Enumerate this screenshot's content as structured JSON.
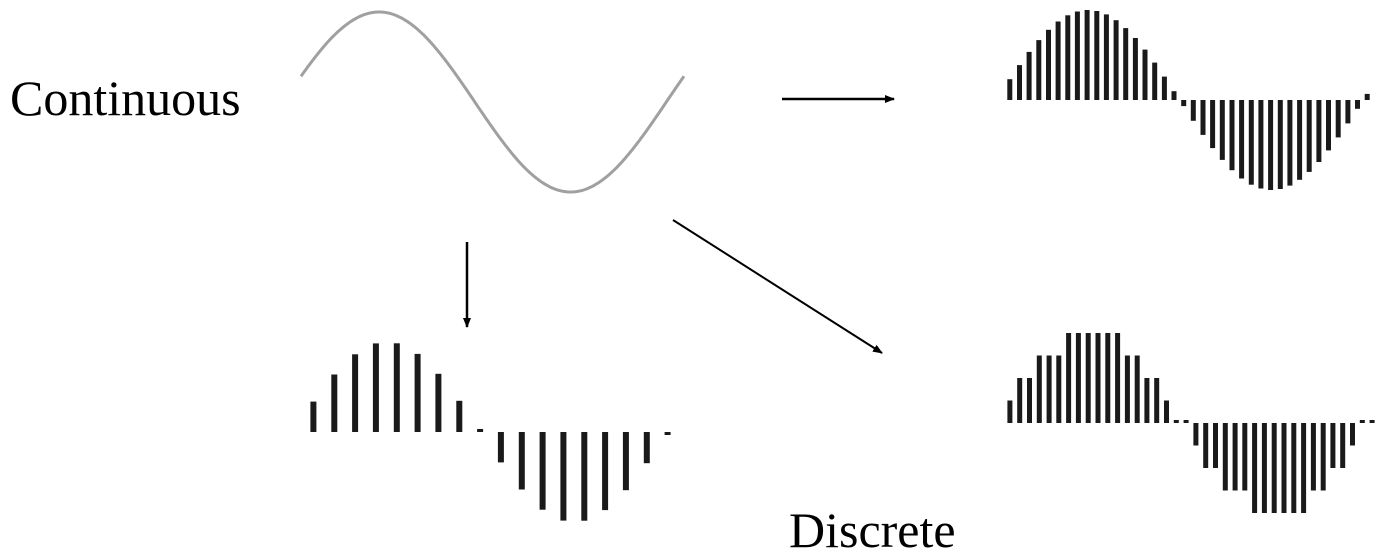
{
  "labels": {
    "continuous": "Continuous",
    "discrete": "Discrete"
  },
  "colors": {
    "background": "#ffffff",
    "wave_curve": "#a0a0a0",
    "sample_bars": "#1a1a1a",
    "arrows": "#000000"
  },
  "signals": [
    {
      "id": "continuous-wave",
      "kind": "continuous"
    },
    {
      "id": "sampled-coarse",
      "kind": "sampled",
      "samples": 18,
      "quantized": false
    },
    {
      "id": "sampled-fine",
      "kind": "sampled",
      "samples": 38,
      "quantized": false
    },
    {
      "id": "sampled-quantized",
      "kind": "sampled",
      "samples": 38,
      "quantized": true,
      "levels": 8
    }
  ],
  "arrows": [
    {
      "id": "arrow-to-fine",
      "direction": "right"
    },
    {
      "id": "arrow-to-coarse",
      "direction": "down"
    },
    {
      "id": "arrow-to-quantized",
      "direction": "down-right"
    }
  ]
}
